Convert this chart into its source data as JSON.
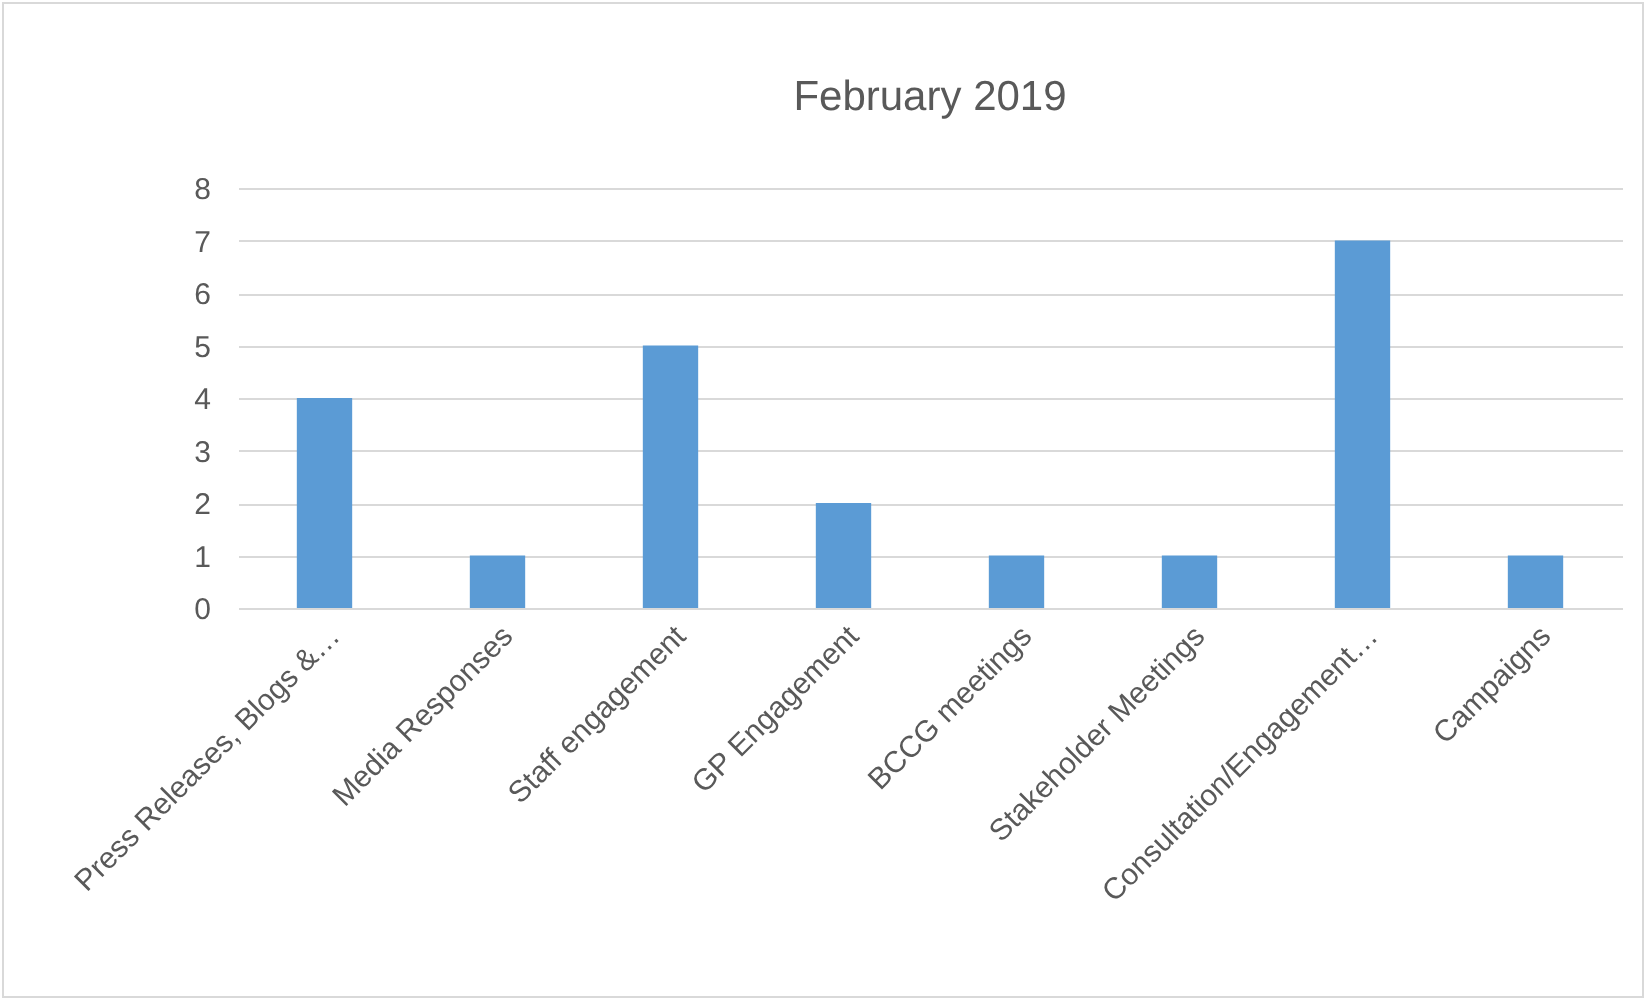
{
  "chart_data": {
    "type": "bar",
    "title": "February 2019",
    "categories": [
      "Press Releases, Blogs &…",
      "Media Responses",
      "Staff engagement",
      "GP Engagement",
      "BCCG meetings",
      "Stakeholder Meetings",
      "Consultation/Engagement…",
      "Campaigns"
    ],
    "values": [
      4,
      1,
      5,
      2,
      1,
      1,
      7,
      1
    ],
    "color": "#5b9bd5",
    "ylim": [
      0,
      8
    ],
    "yticks": [
      0,
      1,
      2,
      3,
      4,
      5,
      6,
      7,
      8
    ],
    "grid": "y"
  }
}
